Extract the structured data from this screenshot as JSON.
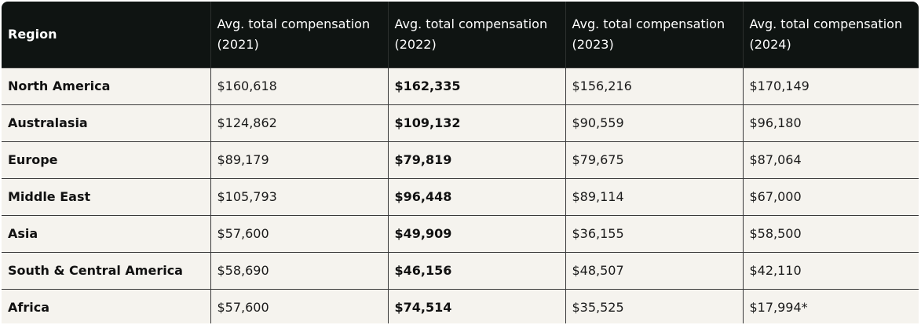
{
  "table": {
    "headers": [
      "Region",
      "Avg. total compensation (2021)",
      "Avg. total compensation (2022)",
      "Avg. total compensation (2023)",
      "Avg. total compensation (2024)"
    ],
    "rows": [
      {
        "region": "North America",
        "y2021": "$160,618",
        "y2022": "$162,335",
        "y2023": "$156,216",
        "y2024": "$170,149"
      },
      {
        "region": "Australasia",
        "y2021": "$124,862",
        "y2022": "$109,132",
        "y2023": "$90,559",
        "y2024": "$96,180"
      },
      {
        "region": "Europe",
        "y2021": "$89,179",
        "y2022": "$79,819",
        "y2023": "$79,675",
        "y2024": "$87,064"
      },
      {
        "region": "Middle East",
        "y2021": "$105,793",
        "y2022": "$96,448",
        "y2023": "$89,114",
        "y2024": "$67,000"
      },
      {
        "region": "Asia",
        "y2021": "$57,600",
        "y2022": "$49,909",
        "y2023": "$36,155",
        "y2024": "$58,500"
      },
      {
        "region": "South & Central America",
        "y2021": "$58,690",
        "y2022": "$46,156",
        "y2023": "$48,507",
        "y2024": "$42,110"
      },
      {
        "region": "Africa",
        "y2021": "$57,600",
        "y2022": "$74,514",
        "y2023": "$35,525",
        "y2024": "$17,994*"
      }
    ]
  },
  "colors": {
    "header_bg": "#0f1412",
    "body_bg": "#f5f3ee",
    "border": "#3a3a3a"
  }
}
